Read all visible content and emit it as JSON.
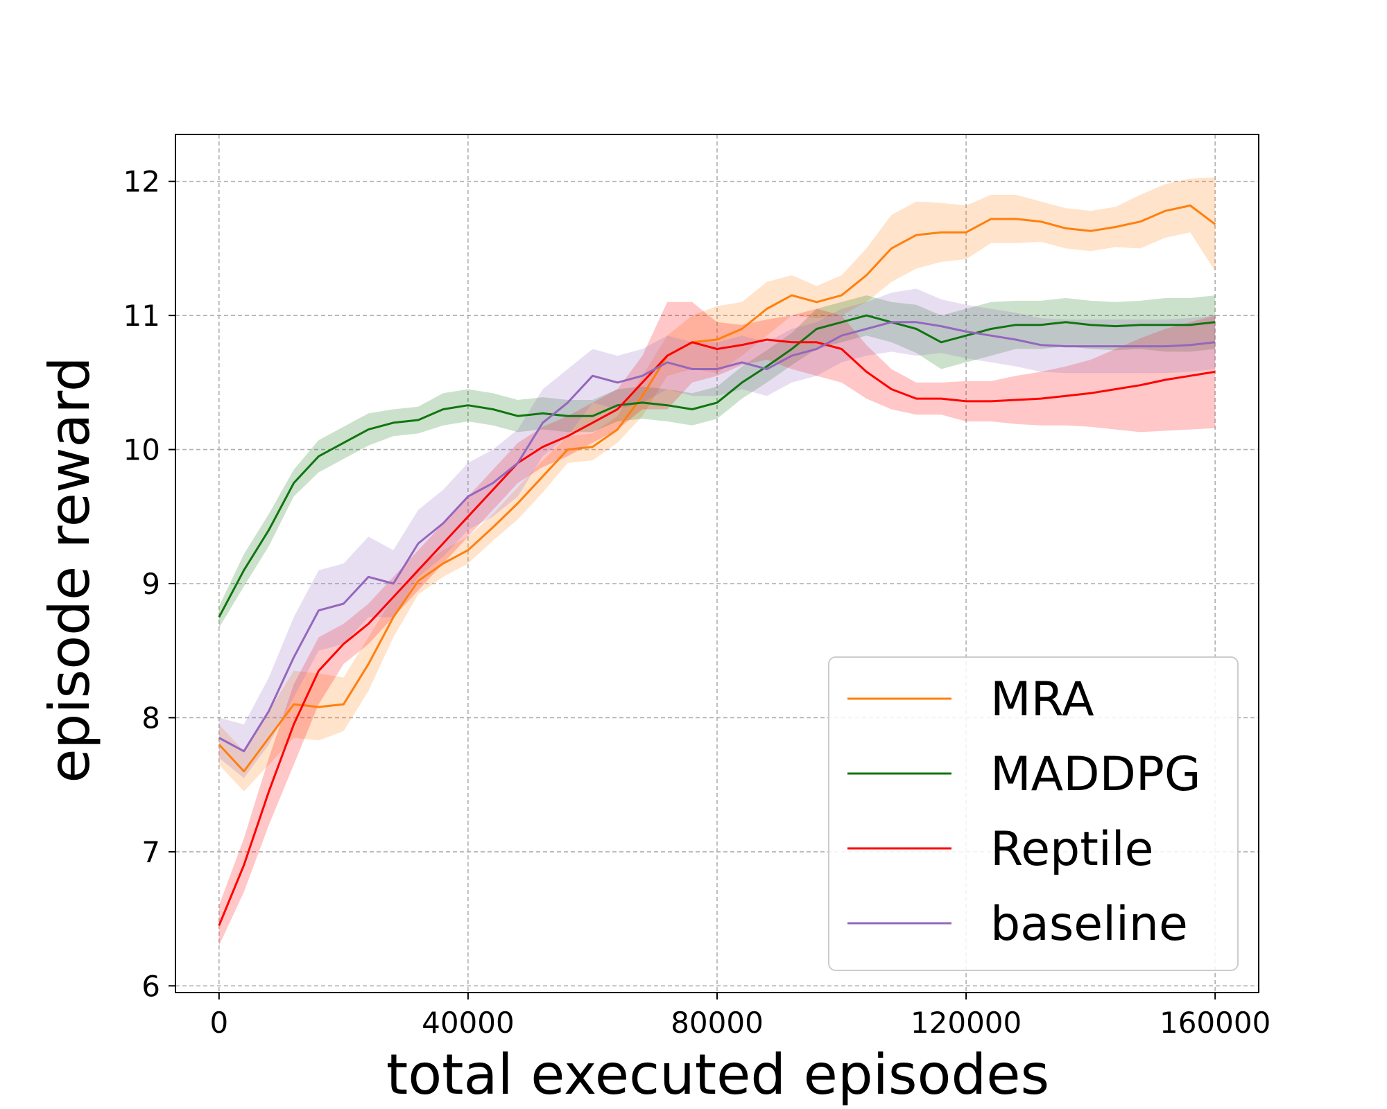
{
  "chart_data": {
    "type": "line",
    "title": "",
    "xlabel": "total executed episodes",
    "ylabel": "episode reward",
    "xlim": [
      -7000,
      167000
    ],
    "ylim": [
      5.95,
      12.35
    ],
    "xticks": [
      0,
      40000,
      80000,
      120000,
      160000
    ],
    "xtick_labels": [
      "0",
      "40000",
      "80000",
      "120000",
      "160000"
    ],
    "yticks": [
      6,
      7,
      8,
      9,
      10,
      11,
      12
    ],
    "ytick_labels": [
      "6",
      "7",
      "8",
      "9",
      "10",
      "11",
      "12"
    ],
    "grid": true,
    "legend_position": "lower-right",
    "x": [
      0,
      4000,
      8000,
      12000,
      16000,
      20000,
      24000,
      28000,
      32000,
      36000,
      40000,
      44000,
      48000,
      52000,
      56000,
      60000,
      64000,
      68000,
      72000,
      76000,
      80000,
      84000,
      88000,
      92000,
      96000,
      100000,
      104000,
      108000,
      112000,
      116000,
      120000,
      124000,
      128000,
      132000,
      136000,
      140000,
      144000,
      148000,
      152000,
      156000,
      160000
    ],
    "series": [
      {
        "name": "MRA",
        "color": "#ff7f0e",
        "values": [
          7.8,
          7.6,
          7.85,
          8.1,
          8.08,
          8.1,
          8.4,
          8.75,
          9.02,
          9.15,
          9.25,
          9.42,
          9.6,
          9.8,
          10.0,
          10.02,
          10.15,
          10.4,
          10.7,
          10.8,
          10.82,
          10.9,
          11.05,
          11.15,
          11.1,
          11.15,
          11.3,
          11.5,
          11.6,
          11.62,
          11.62,
          11.72,
          11.72,
          11.7,
          11.65,
          11.63,
          11.66,
          11.7,
          11.78,
          11.82,
          11.68
        ],
        "band": [
          0.15,
          0.15,
          0.2,
          0.25,
          0.25,
          0.2,
          0.2,
          0.15,
          0.1,
          0.1,
          0.1,
          0.1,
          0.12,
          0.12,
          0.1,
          0.1,
          0.1,
          0.15,
          0.15,
          0.2,
          0.25,
          0.2,
          0.2,
          0.15,
          0.12,
          0.15,
          0.2,
          0.25,
          0.25,
          0.22,
          0.2,
          0.18,
          0.18,
          0.15,
          0.15,
          0.15,
          0.15,
          0.2,
          0.2,
          0.2,
          0.35
        ]
      },
      {
        "name": "MADDPG",
        "color": "#107510",
        "values": [
          8.75,
          9.1,
          9.4,
          9.75,
          9.95,
          10.05,
          10.15,
          10.2,
          10.22,
          10.3,
          10.33,
          10.3,
          10.25,
          10.27,
          10.25,
          10.25,
          10.33,
          10.35,
          10.33,
          10.3,
          10.35,
          10.5,
          10.62,
          10.75,
          10.9,
          10.95,
          11.0,
          10.95,
          10.9,
          10.8,
          10.85,
          10.9,
          10.93,
          10.93,
          10.95,
          10.93,
          10.92,
          10.93,
          10.93,
          10.93,
          10.95
        ],
        "band": [
          0.08,
          0.12,
          0.12,
          0.1,
          0.12,
          0.12,
          0.12,
          0.1,
          0.1,
          0.12,
          0.12,
          0.12,
          0.12,
          0.12,
          0.12,
          0.12,
          0.12,
          0.12,
          0.12,
          0.12,
          0.12,
          0.12,
          0.12,
          0.12,
          0.15,
          0.15,
          0.15,
          0.15,
          0.18,
          0.2,
          0.2,
          0.2,
          0.18,
          0.18,
          0.18,
          0.18,
          0.18,
          0.18,
          0.2,
          0.2,
          0.2
        ]
      },
      {
        "name": "Reptile",
        "color": "#ff0000",
        "values": [
          6.45,
          6.9,
          7.45,
          7.95,
          8.35,
          8.55,
          8.7,
          8.9,
          9.1,
          9.3,
          9.5,
          9.7,
          9.9,
          10.02,
          10.1,
          10.2,
          10.3,
          10.5,
          10.7,
          10.8,
          10.75,
          10.78,
          10.82,
          10.8,
          10.8,
          10.75,
          10.58,
          10.45,
          10.38,
          10.38,
          10.36,
          10.36,
          10.37,
          10.38,
          10.4,
          10.42,
          10.45,
          10.48,
          10.52,
          10.55,
          10.58
        ],
        "band": [
          0.15,
          0.2,
          0.25,
          0.3,
          0.25,
          0.15,
          0.15,
          0.15,
          0.15,
          0.15,
          0.15,
          0.15,
          0.15,
          0.15,
          0.15,
          0.15,
          0.15,
          0.2,
          0.4,
          0.3,
          0.2,
          0.15,
          0.15,
          0.2,
          0.25,
          0.25,
          0.2,
          0.15,
          0.12,
          0.12,
          0.15,
          0.15,
          0.18,
          0.2,
          0.22,
          0.25,
          0.3,
          0.35,
          0.38,
          0.4,
          0.42
        ]
      },
      {
        "name": "baseline",
        "color": "#9467bd",
        "values": [
          7.85,
          7.75,
          8.05,
          8.45,
          8.8,
          8.85,
          9.05,
          9.0,
          9.3,
          9.45,
          9.65,
          9.75,
          9.9,
          10.2,
          10.35,
          10.55,
          10.5,
          10.55,
          10.65,
          10.6,
          10.6,
          10.65,
          10.6,
          10.7,
          10.75,
          10.85,
          10.9,
          10.95,
          10.95,
          10.92,
          10.88,
          10.85,
          10.82,
          10.78,
          10.77,
          10.77,
          10.77,
          10.77,
          10.77,
          10.78,
          10.8
        ],
        "band": [
          0.15,
          0.2,
          0.25,
          0.3,
          0.3,
          0.3,
          0.3,
          0.25,
          0.25,
          0.25,
          0.25,
          0.25,
          0.25,
          0.25,
          0.25,
          0.2,
          0.2,
          0.2,
          0.2,
          0.2,
          0.2,
          0.2,
          0.2,
          0.2,
          0.2,
          0.2,
          0.2,
          0.22,
          0.25,
          0.2,
          0.2,
          0.2,
          0.2,
          0.2,
          0.2,
          0.2,
          0.2,
          0.2,
          0.2,
          0.2,
          0.2
        ]
      }
    ]
  }
}
